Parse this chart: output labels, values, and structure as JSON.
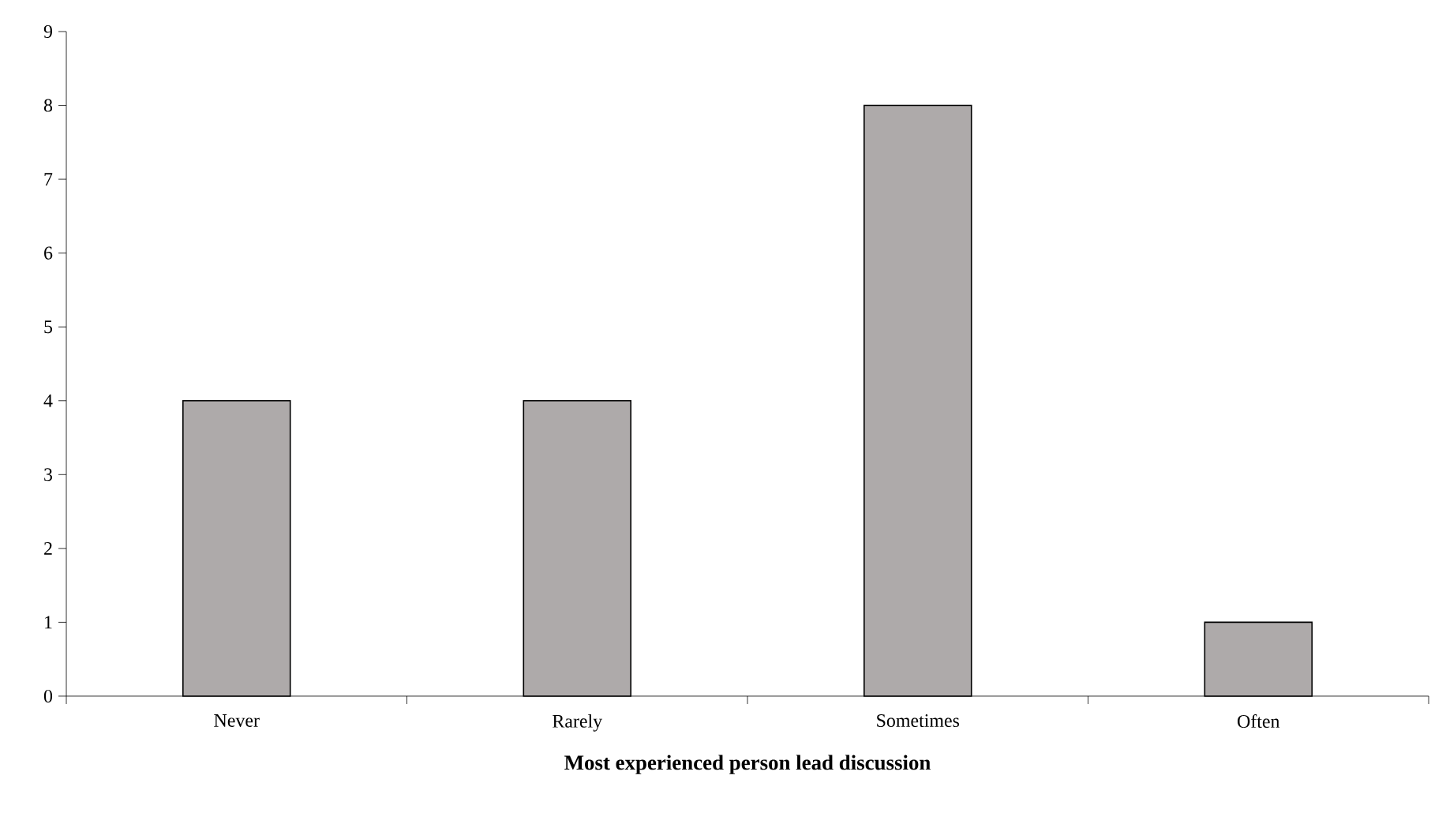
{
  "chart_data": {
    "type": "bar",
    "xlabel": "Most experienced person lead discussion",
    "categories": [
      "Never",
      "Rarely",
      "Sometimes",
      "Often"
    ],
    "values": [
      4,
      4,
      8,
      1
    ],
    "color": "#aeaaaa",
    "ylim": [
      0,
      9
    ],
    "yticks": [
      0,
      1,
      2,
      3,
      4,
      5,
      6,
      7,
      8,
      9
    ],
    "grid": false
  }
}
